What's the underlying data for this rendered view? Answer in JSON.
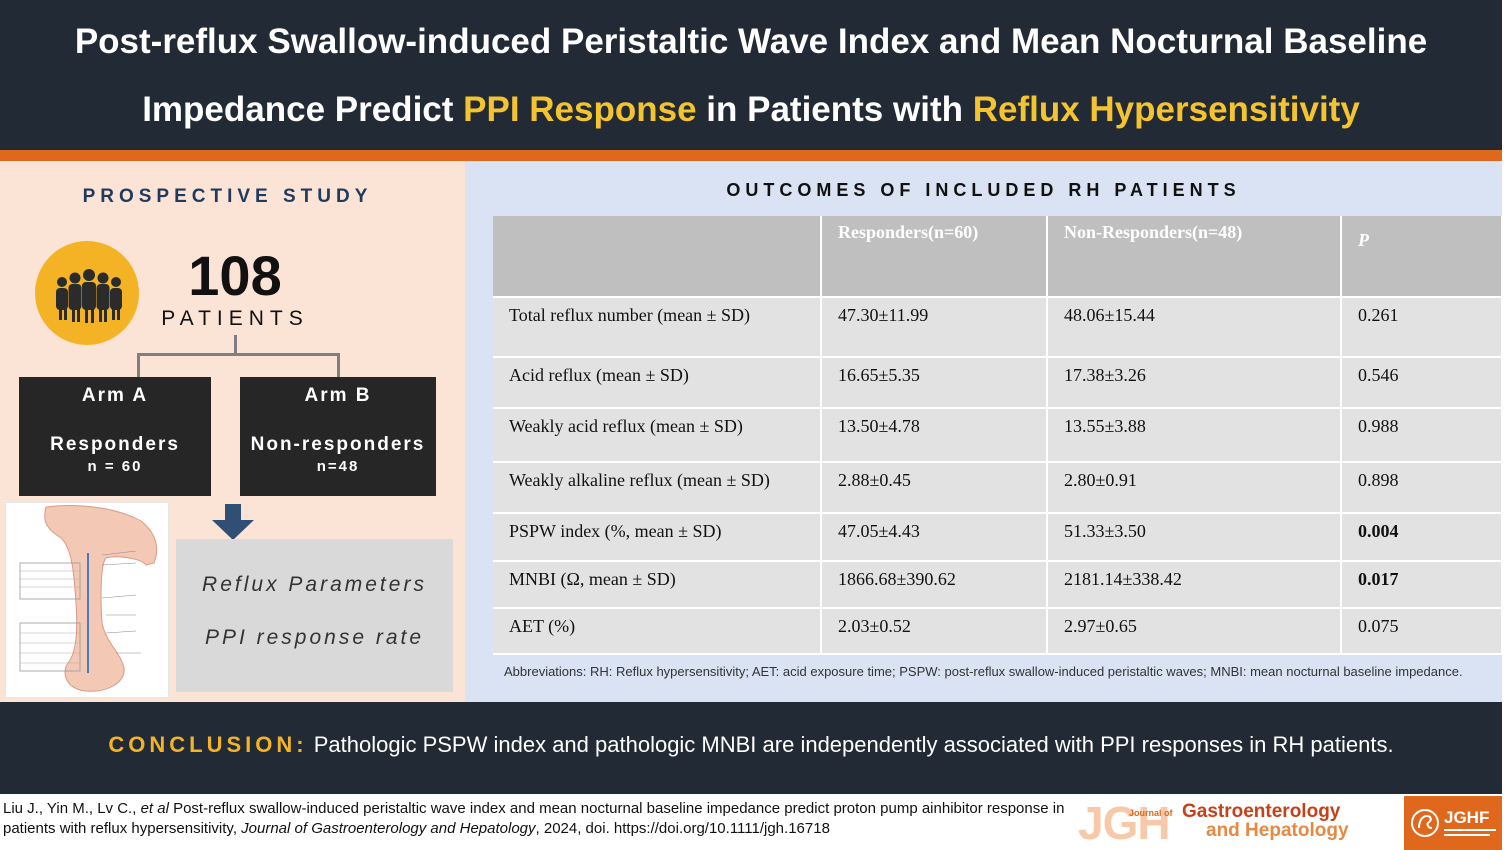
{
  "header": {
    "line1": "Post-reflux Swallow-induced Peristaltic Wave Index and Mean Nocturnal Baseline",
    "line2_part1": "Impedance Predict ",
    "line2_highlight1": "PPI Response",
    "line2_part2": " in Patients with ",
    "line2_highlight2": "Reflux Hypersensitivity"
  },
  "left": {
    "study_type": "PROSPECTIVE STUDY",
    "patient_count": "108",
    "patient_label": "PATIENTS",
    "arm_a": {
      "title": "Arm A",
      "group": "Responders",
      "n": "n = 60"
    },
    "arm_b": {
      "title": "Arm B",
      "group": "Non-responders",
      "n": "n=48"
    },
    "outcome_1": "Reflux Parameters",
    "outcome_2": "PPI response rate",
    "icons": {
      "people": "people-group-icon",
      "arrow": "down-arrow-icon",
      "figure": "esophagus-diagram"
    }
  },
  "right": {
    "title": "OUTCOMES OF INCLUDED RH PATIENTS",
    "table": {
      "headers": [
        "",
        "Responders(n=60)",
        "Non-Responders(n=48)",
        "P"
      ],
      "rows": [
        [
          "Total reflux number  (mean ± SD)",
          "47.30±11.99",
          "48.06±15.44",
          "0.261"
        ],
        [
          "Acid reflux (mean ± SD)",
          "16.65±5.35",
          "17.38±3.26",
          "0.546"
        ],
        [
          "Weakly acid reflux  (mean ± SD)",
          "13.50±4.78",
          "13.55±3.88",
          "0.988"
        ],
        [
          "Weakly alkaline reflux  (mean ± SD)",
          "2.88±0.45",
          "2.80±0.91",
          "0.898"
        ],
        [
          "PSPW index (%, mean ± SD)",
          "47.05±4.43",
          "51.33±3.50",
          "0.004"
        ],
        [
          "MNBI (Ω, mean ± SD)",
          "1866.68±390.62",
          "2181.14±338.42",
          "0.017"
        ],
        [
          "AET (%)",
          "2.03±0.52",
          "2.97±0.65",
          "0.075"
        ]
      ]
    },
    "abbreviations": "Abbreviations: RH: Reflux hypersensitivity; AET: acid exposure time; PSPW: post-reflux swallow-induced peristaltic waves; MNBI: mean nocturnal baseline impedance."
  },
  "conclusion": {
    "label": "CONCLUSION:",
    "text": " Pathologic PSPW index and pathologic MNBI are independently associated with PPI responses in RH patients."
  },
  "citation": {
    "authors": "Liu J., Yin M., Lv C., ",
    "etal": "et al",
    "title": " Post-reflux swallow-induced peristaltic wave index and mean nocturnal baseline impedance predict proton pump ainhibitor response in patients with reflux hypersensitivity, ",
    "journal": "Journal of Gastroenterology and Hepatology",
    "rest": ", 2024, doi. https://doi.org/10.1111/jgh.16718"
  },
  "logo": {
    "jgh": "JGH",
    "journal_of": "Journal of",
    "line1": "Gastroenterology",
    "line2": "and Hepatology",
    "jghf": "JGHF"
  },
  "colors": {
    "dark_navy": "#222a35",
    "accent_yellow": "#f4c430",
    "orange": "#e0681c",
    "left_bg": "#fbe3d6",
    "right_bg": "#dae3f3"
  }
}
